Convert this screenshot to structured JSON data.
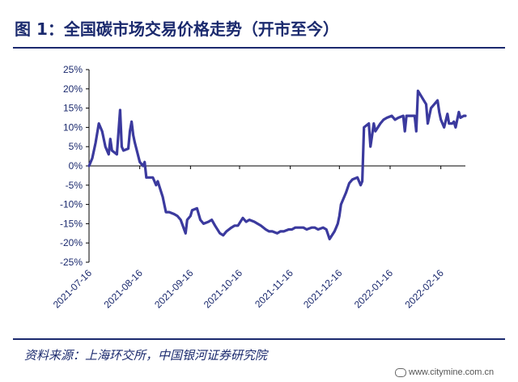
{
  "title": "图 1：全国碳市场交易价格走势（开市至今）",
  "source": "资料来源：上海环交所，中国银河证券研究院",
  "watermark": "www.citymine.com.cn",
  "colors": {
    "series": "#3b3a9e",
    "text": "#1b2a6e",
    "axis": "#000000"
  },
  "chart_data": {
    "type": "line",
    "title": "图 1：全国碳市场交易价格走势（开市至今）",
    "xlabel": "",
    "ylabel": "",
    "ylim": [
      -25,
      25
    ],
    "y_ticks": [
      "25%",
      "20%",
      "15%",
      "10%",
      "5%",
      "0%",
      "-5%",
      "-10%",
      "-15%",
      "-20%",
      "-25%"
    ],
    "x_ticks": [
      "2021-07-16",
      "2021-08-16",
      "2021-09-16",
      "2021-10-16",
      "2021-11-16",
      "2021-12-16",
      "2022-01-16",
      "2022-02-16"
    ],
    "x_range": [
      "2021-07-16",
      "2022-03-03"
    ],
    "grid": false,
    "series": [
      {
        "points": [
          [
            "2021-07-16",
            0
          ],
          [
            "2021-07-18",
            2
          ],
          [
            "2021-07-20",
            6
          ],
          [
            "2021-07-22",
            11
          ],
          [
            "2021-07-24",
            9
          ],
          [
            "2021-07-26",
            5
          ],
          [
            "2021-07-28",
            3
          ],
          [
            "2021-07-29",
            7
          ],
          [
            "2021-07-30",
            4
          ],
          [
            "2021-08-02",
            3
          ],
          [
            "2021-08-04",
            14.5
          ],
          [
            "2021-08-05",
            5
          ],
          [
            "2021-08-06",
            4
          ],
          [
            "2021-08-09",
            4.5
          ],
          [
            "2021-08-10",
            9
          ],
          [
            "2021-08-11",
            11.5
          ],
          [
            "2021-08-12",
            8
          ],
          [
            "2021-08-13",
            6
          ],
          [
            "2021-08-16",
            1
          ],
          [
            "2021-08-18",
            0
          ],
          [
            "2021-08-19",
            1
          ],
          [
            "2021-08-20",
            -3
          ],
          [
            "2021-08-24",
            -3
          ],
          [
            "2021-08-26",
            -5
          ],
          [
            "2021-08-27",
            -4
          ],
          [
            "2021-08-30",
            -8
          ],
          [
            "2021-09-01",
            -12
          ],
          [
            "2021-09-03",
            -12
          ],
          [
            "2021-09-06",
            -12.5
          ],
          [
            "2021-09-08",
            -13
          ],
          [
            "2021-09-10",
            -14
          ],
          [
            "2021-09-13",
            -17.5
          ],
          [
            "2021-09-14",
            -14
          ],
          [
            "2021-09-16",
            -13
          ],
          [
            "2021-09-17",
            -11.5
          ],
          [
            "2021-09-20",
            -11
          ],
          [
            "2021-09-22",
            -14
          ],
          [
            "2021-09-24",
            -15
          ],
          [
            "2021-09-27",
            -14.5
          ],
          [
            "2021-09-29",
            -14
          ],
          [
            "2021-10-01",
            -15.5
          ],
          [
            "2021-10-04",
            -17.5
          ],
          [
            "2021-10-06",
            -18
          ],
          [
            "2021-10-08",
            -17
          ],
          [
            "2021-10-11",
            -16
          ],
          [
            "2021-10-13",
            -15.5
          ],
          [
            "2021-10-15",
            -15.5
          ],
          [
            "2021-10-18",
            -13.5
          ],
          [
            "2021-10-20",
            -14.5
          ],
          [
            "2021-10-22",
            -14
          ],
          [
            "2021-10-25",
            -14.5
          ],
          [
            "2021-10-27",
            -15
          ],
          [
            "2021-10-29",
            -15.5
          ],
          [
            "2021-11-01",
            -16.5
          ],
          [
            "2021-11-03",
            -17
          ],
          [
            "2021-11-05",
            -17
          ],
          [
            "2021-11-08",
            -17.5
          ],
          [
            "2021-11-10",
            -17
          ],
          [
            "2021-11-12",
            -17
          ],
          [
            "2021-11-15",
            -16.5
          ],
          [
            "2021-11-17",
            -16.5
          ],
          [
            "2021-11-19",
            -16
          ],
          [
            "2021-11-22",
            -16
          ],
          [
            "2021-11-24",
            -16
          ],
          [
            "2021-11-26",
            -16.5
          ],
          [
            "2021-11-29",
            -16
          ],
          [
            "2021-12-01",
            -16
          ],
          [
            "2021-12-03",
            -16.5
          ],
          [
            "2021-12-06",
            -16
          ],
          [
            "2021-12-08",
            -16.5
          ],
          [
            "2021-12-10",
            -19
          ],
          [
            "2021-12-13",
            -17
          ],
          [
            "2021-12-14",
            -16
          ],
          [
            "2021-12-15",
            -15
          ],
          [
            "2021-12-16",
            -13
          ],
          [
            "2021-12-17",
            -10
          ],
          [
            "2021-12-20",
            -7
          ],
          [
            "2021-12-22",
            -4.5
          ],
          [
            "2021-12-24",
            -3.5
          ],
          [
            "2021-12-27",
            -3
          ],
          [
            "2021-12-29",
            -5
          ],
          [
            "2021-12-30",
            -4
          ],
          [
            "2021-12-31",
            10
          ],
          [
            "2022-01-03",
            11
          ],
          [
            "2022-01-04",
            5
          ],
          [
            "2022-01-05",
            8
          ],
          [
            "2022-01-06",
            11
          ],
          [
            "2022-01-07",
            9
          ],
          [
            "2022-01-10",
            11
          ],
          [
            "2022-01-12",
            12
          ],
          [
            "2022-01-14",
            12.5
          ],
          [
            "2022-01-17",
            13
          ],
          [
            "2022-01-19",
            12
          ],
          [
            "2022-01-21",
            12.5
          ],
          [
            "2022-01-24",
            13
          ],
          [
            "2022-01-25",
            9
          ],
          [
            "2022-01-26",
            13
          ],
          [
            "2022-01-28",
            13
          ],
          [
            "2022-01-31",
            13
          ],
          [
            "2022-02-01",
            9
          ],
          [
            "2022-02-02",
            19.5
          ],
          [
            "2022-02-07",
            16
          ],
          [
            "2022-02-08",
            11
          ],
          [
            "2022-02-10",
            15
          ],
          [
            "2022-02-14",
            17
          ],
          [
            "2022-02-15",
            14
          ],
          [
            "2022-02-16",
            12
          ],
          [
            "2022-02-18",
            10
          ],
          [
            "2022-02-20",
            13.5
          ],
          [
            "2022-02-21",
            11
          ],
          [
            "2022-02-23",
            11
          ],
          [
            "2022-02-24",
            11.5
          ],
          [
            "2022-02-25",
            10
          ],
          [
            "2022-02-27",
            14
          ],
          [
            "2022-02-28",
            12.5
          ],
          [
            "2022-03-02",
            13
          ],
          [
            "2022-03-03",
            13
          ]
        ]
      }
    ]
  }
}
